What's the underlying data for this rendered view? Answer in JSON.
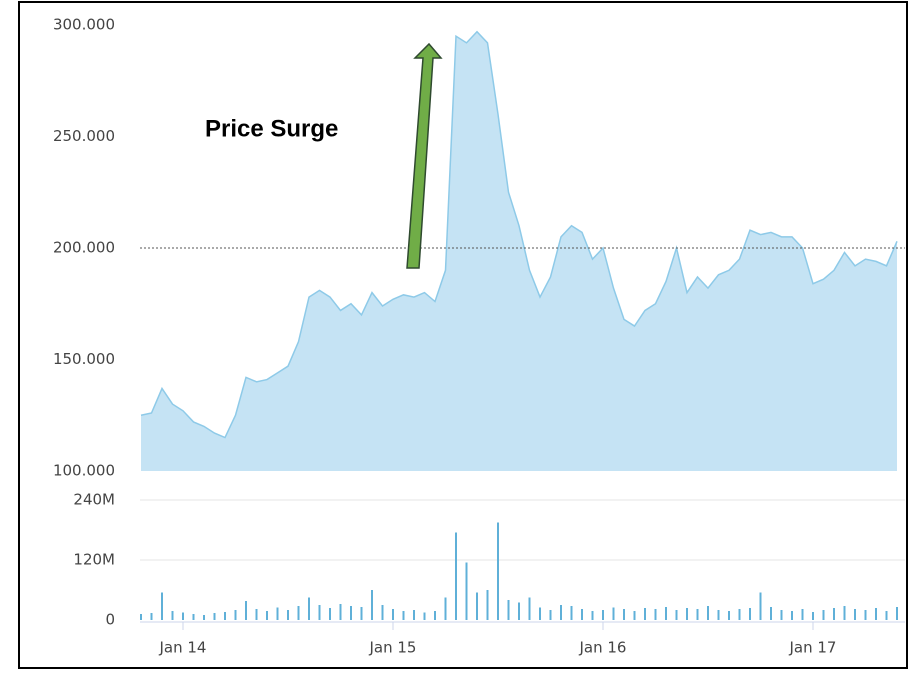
{
  "chart_data": [
    {
      "type": "area",
      "color": "#c5e3f4",
      "line_color": "#8ecae8",
      "values": [
        125,
        126,
        137,
        130,
        127,
        122,
        120,
        117,
        115,
        125,
        142,
        140,
        141,
        144,
        147,
        158,
        178,
        181,
        178,
        172,
        175,
        170,
        180,
        174,
        177,
        179,
        178,
        180,
        176,
        190,
        295,
        292,
        297,
        292,
        260,
        225,
        210,
        190,
        178,
        187,
        205,
        210,
        207,
        195,
        200,
        182,
        168,
        165,
        172,
        175,
        185,
        200,
        180,
        187,
        182,
        188,
        190,
        195,
        208,
        206,
        207,
        205,
        205,
        200,
        184,
        186,
        190,
        198,
        192,
        195,
        194,
        192,
        203
      ],
      "ylim": [
        100,
        300
      ],
      "yticks": [
        {
          "value": 100,
          "label": "100.000"
        },
        {
          "value": 150,
          "label": "150.000"
        },
        {
          "value": 200,
          "label": "200.000"
        },
        {
          "value": 250,
          "label": "250.000"
        },
        {
          "value": 300,
          "label": "300.000"
        }
      ],
      "reference_line": 200,
      "annotation": "Price Surge"
    },
    {
      "type": "bar",
      "color": "#5fb0d8",
      "categories": [
        null,
        null,
        null,
        null,
        "Jan 14",
        null,
        null,
        null,
        null,
        null,
        null,
        null,
        null,
        null,
        null,
        null,
        null,
        null,
        null,
        null,
        null,
        null,
        null,
        null,
        "Jan 15",
        null,
        null,
        null,
        null,
        null,
        null,
        null,
        null,
        null,
        null,
        null,
        null,
        null,
        null,
        null,
        null,
        null,
        null,
        null,
        "Jan 16",
        null,
        null,
        null,
        null,
        null,
        null,
        null,
        null,
        null,
        null,
        null,
        null,
        null,
        null,
        null,
        null,
        null,
        null,
        null,
        "Jan 17",
        null,
        null,
        null,
        null,
        null,
        null,
        null,
        null
      ],
      "values": [
        12,
        14,
        55,
        18,
        15,
        12,
        10,
        14,
        16,
        20,
        38,
        22,
        18,
        25,
        20,
        28,
        45,
        30,
        24,
        32,
        28,
        26,
        60,
        30,
        22,
        18,
        20,
        15,
        18,
        45,
        175,
        115,
        55,
        60,
        195,
        40,
        35,
        45,
        25,
        20,
        30,
        28,
        22,
        18,
        20,
        25,
        22,
        18,
        24,
        22,
        26,
        20,
        24,
        22,
        28,
        20,
        18,
        22,
        24,
        55,
        26,
        20,
        18,
        22,
        16,
        20,
        24,
        28,
        22,
        20,
        24,
        18,
        26
      ],
      "ylim": [
        0,
        240
      ],
      "yticks": [
        0,
        {
          "value": 120,
          "label": "120M"
        },
        {
          "value": 240,
          "label": "240M"
        }
      ],
      "grid": true
    }
  ]
}
